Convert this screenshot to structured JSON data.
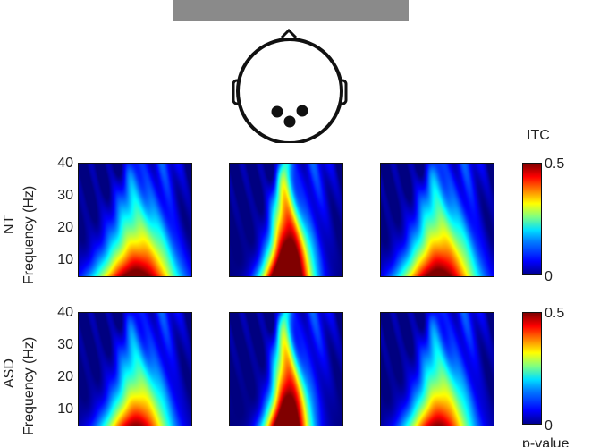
{
  "chart_data": [
    {
      "type": "heatmap",
      "row_label": "NT",
      "ylabel": "Frequency (Hz)",
      "yticks": [
        10,
        20,
        30,
        40
      ],
      "ylim": [
        4,
        40
      ],
      "panels": [
        {
          "peak": 0.55,
          "core_width": 0.32,
          "decay": 1.1
        },
        {
          "peak": 0.75,
          "core_width": 0.18,
          "decay": 0.75
        },
        {
          "peak": 0.55,
          "core_width": 0.3,
          "decay": 1.0
        }
      ],
      "colorbar": {
        "label": "ITC",
        "min": 0,
        "max": 0.5,
        "ticks": [
          "0.5",
          "0"
        ]
      }
    },
    {
      "type": "heatmap",
      "row_label": "ASD",
      "ylabel": "Frequency (Hz)",
      "yticks": [
        10,
        20,
        30,
        40
      ],
      "ylim": [
        4,
        40
      ],
      "panels": [
        {
          "peak": 0.5,
          "core_width": 0.26,
          "decay": 1.1
        },
        {
          "peak": 0.7,
          "core_width": 0.16,
          "decay": 0.75
        },
        {
          "peak": 0.5,
          "core_width": 0.25,
          "decay": 1.05
        }
      ],
      "colorbar": {
        "label": "p-value",
        "min": 0,
        "max": 0.5,
        "ticks": [
          "0.5",
          "0"
        ]
      }
    }
  ]
}
